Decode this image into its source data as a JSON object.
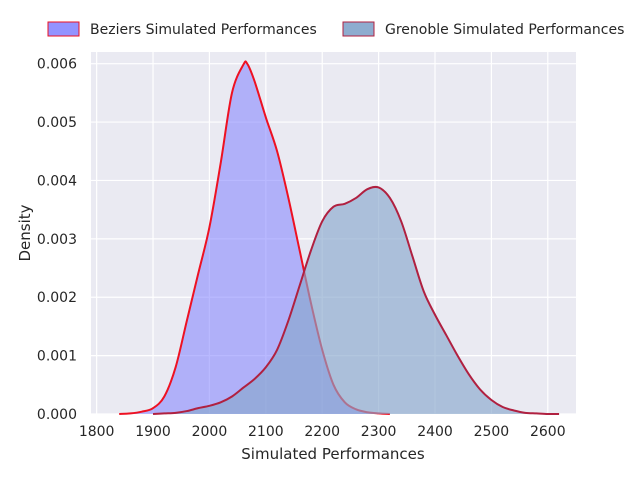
{
  "chart_data": {
    "type": "area",
    "title": "",
    "xlabel": "Simulated Performances",
    "ylabel": "Density",
    "xlim": [
      1790,
      2650
    ],
    "ylim": [
      0,
      0.0062
    ],
    "xticks": [
      1800,
      1900,
      2000,
      2100,
      2200,
      2300,
      2400,
      2500,
      2600
    ],
    "yticks": [
      "0.000",
      "0.001",
      "0.002",
      "0.003",
      "0.004",
      "0.005",
      "0.006"
    ],
    "ytick_values": [
      0,
      0.001,
      0.002,
      0.003,
      0.004,
      0.005,
      0.006
    ],
    "grid": true,
    "legend_position": "top-center-outside",
    "series": [
      {
        "name": "Beziers Simulated Performances",
        "fill": "#8080ff",
        "fill_opacity": 0.55,
        "line": "#ee1122",
        "x": [
          1840,
          1860,
          1880,
          1900,
          1920,
          1940,
          1960,
          1980,
          2000,
          2020,
          2040,
          2060,
          2067,
          2080,
          2100,
          2120,
          2140,
          2160,
          2180,
          2200,
          2220,
          2240,
          2260,
          2280,
          2300,
          2320
        ],
        "y": [
          0.0,
          1e-05,
          4e-05,
          0.0001,
          0.0003,
          0.0008,
          0.0016,
          0.0024,
          0.0032,
          0.0043,
          0.0055,
          0.00598,
          0.006,
          0.0057,
          0.00508,
          0.0045,
          0.0037,
          0.0028,
          0.0019,
          0.0011,
          0.0005,
          0.0002,
          8e-05,
          3e-05,
          1e-05,
          0.0
        ]
      },
      {
        "name": "Grenoble Simulated Performances",
        "fill": "#88a8cc",
        "fill_opacity": 0.65,
        "line": "#b02040",
        "x": [
          1900,
          1920,
          1940,
          1960,
          1980,
          2000,
          2020,
          2040,
          2060,
          2080,
          2100,
          2120,
          2140,
          2160,
          2180,
          2200,
          2220,
          2240,
          2260,
          2280,
          2300,
          2320,
          2340,
          2360,
          2380,
          2400,
          2420,
          2440,
          2460,
          2480,
          2500,
          2520,
          2540,
          2560,
          2580,
          2600,
          2620
        ],
        "y": [
          0.0,
          1e-05,
          2e-05,
          5e-05,
          0.0001,
          0.00014,
          0.0002,
          0.0003,
          0.00045,
          0.0006,
          0.0008,
          0.0011,
          0.0016,
          0.0022,
          0.0028,
          0.0033,
          0.00355,
          0.0036,
          0.0037,
          0.00385,
          0.00388,
          0.0037,
          0.0033,
          0.0027,
          0.0021,
          0.0017,
          0.00135,
          0.001,
          0.00068,
          0.00042,
          0.00024,
          0.00012,
          6e-05,
          2e-05,
          1e-05,
          0.0,
          0.0
        ]
      }
    ]
  }
}
